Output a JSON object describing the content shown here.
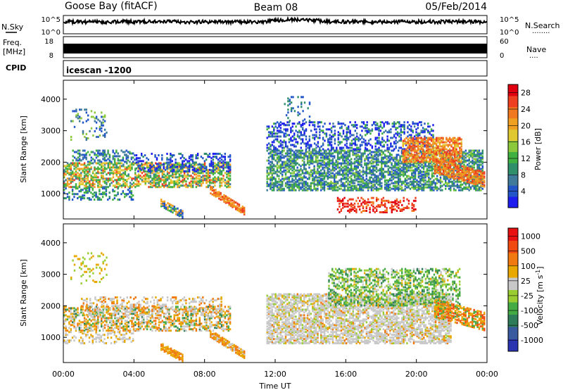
{
  "header": {
    "station": "Goose Bay (fitACF)",
    "beam": "Beam 08",
    "date": "05/Feb/2014"
  },
  "strip_panels": {
    "nsky_label": "N.Sky",
    "nsearch_label": "N.Search",
    "nsearch_dots": "........",
    "freq_label_top": "Freq.",
    "freq_label_units": "[MHz]",
    "nave_label": "Nave",
    "nave_dots": "....",
    "cpid_label": "CPID",
    "cpid_text": "icescan  -1200",
    "noise_ticks_left": [
      "10^5",
      "10^0"
    ],
    "noise_ticks_right": [
      "10^5",
      "10^0"
    ],
    "freq_ticks": [
      "18",
      "8"
    ],
    "nave_ticks": [
      "60",
      "0"
    ]
  },
  "chart_data": [
    {
      "type": "heatmap",
      "title": "",
      "xlabel": "",
      "ylabel": "Slant Range [km]",
      "xlim": [
        "00:00",
        "24:00"
      ],
      "ylim": [
        200,
        4600
      ],
      "y_ticks": [
        1000,
        2000,
        3000,
        4000
      ],
      "y_tick_labels": [
        "1000",
        "2000",
        "3000",
        "4000"
      ],
      "colorbar": {
        "label": "Power [dB]",
        "ticks": [
          "4",
          "8",
          "12",
          "16",
          "20",
          "24",
          "28"
        ],
        "tick_values": [
          4,
          8,
          12,
          16,
          20,
          24,
          28
        ],
        "range": [
          0,
          30
        ],
        "colors": [
          "#1d1df0",
          "#2255c8",
          "#3f7a9a",
          "#2f8f6a",
          "#40b040",
          "#8cc83c",
          "#e0c830",
          "#f0a020",
          "#f07820",
          "#ee4020",
          "#e00010"
        ]
      }
    },
    {
      "type": "heatmap",
      "title": "",
      "xlabel": "Time UT",
      "ylabel": "Slant Range [km]",
      "xlim": [
        "00:00",
        "24:00"
      ],
      "ylim": [
        200,
        4600
      ],
      "x_ticks": [
        "00:00",
        "04:00",
        "08:00",
        "12:00",
        "16:00",
        "20:00",
        "00:00"
      ],
      "y_ticks": [
        1000,
        2000,
        3000,
        4000
      ],
      "y_tick_labels": [
        "1000",
        "2000",
        "3000",
        "4000"
      ],
      "colorbar": {
        "label": "Velocity [m s^-1]",
        "ticks": [
          "1000",
          "500",
          "100",
          "25",
          "-25",
          "-100",
          "-500",
          "-1000"
        ],
        "colors": [
          "#2a34b0",
          "#3a5aa0",
          "#2e7c5a",
          "#44aa44",
          "#9acd32",
          "#c8c8c8",
          "#e8a800",
          "#f07a10",
          "#f04a10",
          "#e81010"
        ]
      }
    }
  ]
}
